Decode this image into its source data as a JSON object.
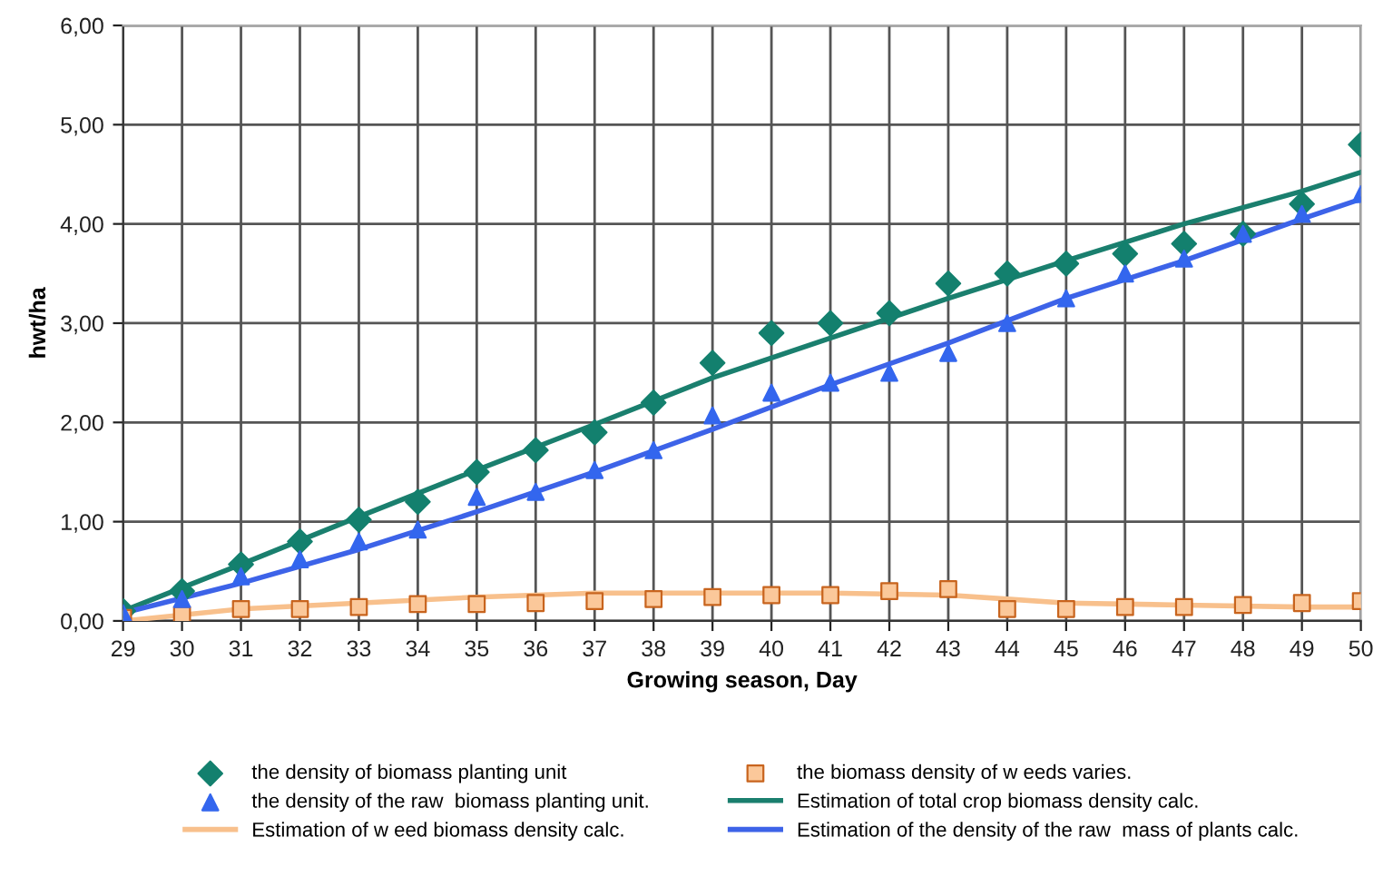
{
  "chart_data": {
    "type": "scatter",
    "xlabel": "Growing season, Day",
    "ylabel": "hwt/ha",
    "xlim": [
      29,
      50
    ],
    "xticks": [
      29,
      30,
      31,
      32,
      33,
      34,
      35,
      36,
      37,
      38,
      39,
      40,
      41,
      42,
      43,
      44,
      45,
      46,
      47,
      48,
      49,
      50
    ],
    "ylim": [
      0,
      6
    ],
    "yticks": [
      {
        "value": 0,
        "label": "0,00"
      },
      {
        "value": 1,
        "label": "1,00"
      },
      {
        "value": 2,
        "label": "2,00"
      },
      {
        "value": 3,
        "label": "3,00"
      },
      {
        "value": 4,
        "label": "4,00"
      },
      {
        "value": 5,
        "label": "5,00"
      },
      {
        "value": 6,
        "label": "6,00"
      }
    ],
    "grid": true,
    "legend": "bottom",
    "series": [
      {
        "name": "the density of biomass planting unit",
        "marker": "diamond",
        "color": "#13806e",
        "x": [
          29,
          30,
          31,
          32,
          33,
          34,
          35,
          36,
          37,
          38,
          39,
          40,
          41,
          42,
          43,
          44,
          45,
          46,
          47,
          48,
          49,
          50
        ],
        "values": [
          0.1,
          0.3,
          0.57,
          0.8,
          1.02,
          1.2,
          1.5,
          1.72,
          1.9,
          2.2,
          2.6,
          2.9,
          3.0,
          3.1,
          3.4,
          3.5,
          3.6,
          3.7,
          3.8,
          3.9,
          4.2,
          4.8
        ]
      },
      {
        "name": "the biomass density of w eeds varies.",
        "marker": "square",
        "color": "#fbc89a",
        "x": [
          29,
          30,
          31,
          32,
          33,
          34,
          35,
          36,
          37,
          38,
          39,
          40,
          41,
          42,
          43,
          44,
          45,
          46,
          47,
          48,
          49,
          50
        ],
        "values": [
          0.03,
          0.06,
          0.12,
          0.12,
          0.14,
          0.17,
          0.17,
          0.18,
          0.2,
          0.22,
          0.24,
          0.26,
          0.26,
          0.3,
          0.32,
          0.12,
          0.12,
          0.14,
          0.14,
          0.16,
          0.18,
          0.2
        ]
      },
      {
        "name": "the density of the raw  biomass planting unit.",
        "marker": "triangle",
        "color": "#3366ee",
        "x": [
          29,
          30,
          31,
          32,
          33,
          34,
          35,
          36,
          37,
          38,
          39,
          40,
          41,
          42,
          43,
          44,
          45,
          46,
          47,
          48,
          49,
          50
        ],
        "values": [
          0.08,
          0.22,
          0.45,
          0.62,
          0.8,
          0.92,
          1.25,
          1.3,
          1.52,
          1.72,
          2.07,
          2.3,
          2.4,
          2.5,
          2.7,
          3.0,
          3.25,
          3.5,
          3.65,
          3.9,
          4.1,
          4.3
        ]
      },
      {
        "name": "Estimation of total crop biomass density calc.",
        "type": "line",
        "marker": "none",
        "line_style": "solid",
        "color": "#1a7f6e",
        "x": [
          29,
          31,
          33,
          35,
          37,
          39,
          41,
          43,
          45,
          47,
          49,
          50
        ],
        "values": [
          0.1,
          0.57,
          1.05,
          1.52,
          1.98,
          2.45,
          2.85,
          3.25,
          3.63,
          4.0,
          4.33,
          4.52
        ]
      },
      {
        "name": "Estimation of w eed biomass density calc.",
        "type": "line",
        "marker": "none",
        "line_style": "solid",
        "color": "#f8c08c",
        "x": [
          29,
          31,
          33,
          35,
          37,
          39,
          41,
          43,
          44,
          45,
          47,
          49,
          50
        ],
        "values": [
          0.0,
          0.12,
          0.18,
          0.24,
          0.28,
          0.28,
          0.28,
          0.26,
          0.22,
          0.18,
          0.16,
          0.14,
          0.14
        ]
      },
      {
        "name": "Estimation of the density of the raw  mass of plants calc.",
        "type": "line",
        "marker": "none",
        "line_style": "solid",
        "color": "#3d63e8",
        "x": [
          29,
          31,
          33,
          35,
          37,
          39,
          41,
          43,
          45,
          47,
          49,
          50
        ],
        "values": [
          0.08,
          0.38,
          0.72,
          1.1,
          1.5,
          1.93,
          2.38,
          2.8,
          3.25,
          3.63,
          4.05,
          4.25
        ]
      }
    ]
  }
}
